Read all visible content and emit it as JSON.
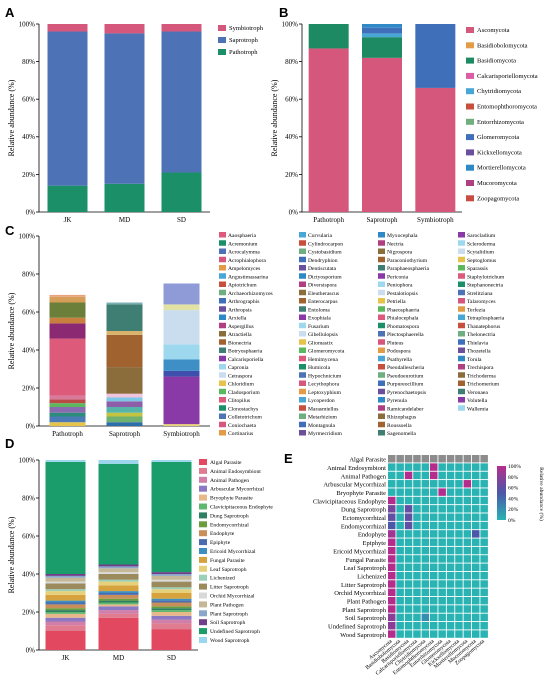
{
  "panels": {
    "a": "A",
    "b": "B",
    "c": "C",
    "d": "D",
    "e": "E"
  },
  "chart_data": [
    {
      "panel": "A",
      "type": "bar",
      "stacked": true,
      "categories": [
        "JK",
        "MD",
        "SD"
      ],
      "ylabel": "Relative abundance (%)",
      "ylim": [
        0,
        100
      ],
      "yticks": [
        "0%",
        "20%",
        "40%",
        "60%",
        "80%",
        "100%"
      ],
      "legend_position": "right",
      "series": [
        {
          "name": "Pathotroph",
          "color": "#1b8f67",
          "values": [
            14,
            15,
            21
          ]
        },
        {
          "name": "Saprotroph",
          "color": "#4d72b5",
          "values": [
            82,
            80,
            75
          ]
        },
        {
          "name": "Symbiotroph",
          "color": "#d6577c",
          "values": [
            4,
            5,
            4
          ]
        }
      ]
    },
    {
      "panel": "B",
      "type": "bar",
      "stacked": true,
      "categories": [
        "Pathotroph",
        "Saprotroph",
        "Symbiotroph"
      ],
      "ylabel": "Relative abundance (%)",
      "ylim": [
        0,
        100
      ],
      "yticks": [
        "0%",
        "20%",
        "40%",
        "60%",
        "80%",
        "100%"
      ],
      "legend_position": "right",
      "series": [
        {
          "name": "Ascomycota",
          "color": "#d5577b",
          "values": [
            87,
            82,
            66
          ]
        },
        {
          "name": "Basidiobolomycota",
          "color": "#e49b47",
          "values": [
            0,
            0,
            0
          ]
        },
        {
          "name": "Basidiomycota",
          "color": "#1e8a63",
          "values": [
            13,
            11,
            0
          ]
        },
        {
          "name": "Calcarisporiellomycota",
          "color": "#d95ea5",
          "values": [
            0,
            0,
            0
          ]
        },
        {
          "name": "Chytridiomycota",
          "color": "#49a7d8",
          "values": [
            0,
            2,
            0
          ]
        },
        {
          "name": "Entomophthoromycota",
          "color": "#c84f3d",
          "values": [
            0,
            0,
            0
          ]
        },
        {
          "name": "Entorrhizomycota",
          "color": "#6fae7f",
          "values": [
            0,
            0,
            0
          ]
        },
        {
          "name": "Glomeromycota",
          "color": "#3f6fb8",
          "values": [
            0,
            3,
            34
          ]
        },
        {
          "name": "Kickxellomycota",
          "color": "#6a4f9c",
          "values": [
            0,
            0,
            0
          ]
        },
        {
          "name": "Mortierellomycota",
          "color": "#2f89c6",
          "values": [
            0,
            2,
            0
          ]
        },
        {
          "name": "Mucoromycota",
          "color": "#b03f82",
          "values": [
            0,
            0,
            0
          ]
        },
        {
          "name": "Zoopagomycota",
          "color": "#c94b42",
          "values": [
            0,
            0,
            0
          ]
        }
      ]
    },
    {
      "panel": "C",
      "type": "bar",
      "stacked": true,
      "categories": [
        "Pathotroph",
        "Saprotroph",
        "Symbiotroph"
      ],
      "ylabel": "Relative abundance (%)",
      "ylim": [
        0,
        100
      ],
      "yticks": [
        "0%",
        "20%",
        "40%",
        "60%",
        "80%",
        "100%"
      ],
      "legend_position": "right",
      "legend": [
        "Aaosphaeria",
        "Acremonium",
        "Acrocalymma",
        "Acrophialophora",
        "Ampelomyces",
        "Angustimassarina",
        "Apiotrichum",
        "Archaeorhizomyces",
        "Arthrographis",
        "Arthropsis",
        "Arxiella",
        "Aspergillus",
        "Atractiella",
        "Bionectria",
        "Botryosphaeria",
        "Calcarisporiella",
        "Capronia",
        "Cetraspora",
        "Chloridium",
        "Cladosporium",
        "Clitopilus",
        "Clonostachys",
        "Colletotrichum",
        "Coniochaeta",
        "Cortinarius",
        "Curvularia",
        "Cylindrocarpon",
        "Cystobasidium",
        "Dendryphion",
        "Dentiscutata",
        "Dictyosporium",
        "Diversispora",
        "Eleutherascus",
        "Enterocarpus",
        "Entoloma",
        "Exophiala",
        "Fusarium",
        "Gibellulopsis",
        "Gliomastix",
        "Glomeromycota",
        "Hemimycena",
        "Humicola",
        "Hypochnicium",
        "Lecythophora",
        "Leptoxyphium",
        "Lycoperdon",
        "Marasmiellus",
        "Metarhizium",
        "Montagnula",
        "Myrmecridium",
        "Myxocephala",
        "Nectria",
        "Nigrospora",
        "Paraconiothyrium",
        "Paraphaeosphaeria",
        "Periconia",
        "Peniophora",
        "Pestalotiopsis",
        "Petriella",
        "Phaeosphaeria",
        "Phialocephala",
        "Phomatospora",
        "Plectosphaerella",
        "Pluteus",
        "Podospora",
        "Psathyrella",
        "Pseudallescheria",
        "Pseudoeurotium",
        "Purpureocillium",
        "Pyrenochaetopsis",
        "Pyrenula",
        "Ramicandelaber",
        "Rhizophagus",
        "Roussoella",
        "Sagenomella",
        "Sarocladium",
        "Scleroderma",
        "Scytalidium",
        "Septoglomus",
        "Sparassis",
        "Staphylotrichum",
        "Stephanonectria",
        "Strelitziana",
        "Talaromyces",
        "Terfezia",
        "Tetraplosphaeria",
        "Thanatephorus",
        "Thelonectria",
        "Thielavia",
        "Thozetella",
        "Torula",
        "Trechispora",
        "Trichoderma",
        "Trichomerium",
        "Veronaea",
        "Volutella",
        "Wallemia"
      ],
      "series": [
        {
          "name": "Pathotroph",
          "segments": [
            [
              2,
              "#e6c34b"
            ],
            [
              3,
              "#4a7bb7"
            ],
            [
              2,
              "#2b8c79"
            ],
            [
              3,
              "#8a6bb0"
            ],
            [
              2,
              "#5cb85c"
            ],
            [
              2,
              "#b94a48"
            ],
            [
              2,
              "#d77a9b"
            ],
            [
              30,
              "#dd5a7a"
            ],
            [
              8,
              "#8b2a72"
            ],
            [
              3,
              "#c97f3e"
            ],
            [
              8,
              "#6b7f3a"
            ],
            [
              3,
              "#d59f5a"
            ],
            [
              1,
              "#e9a37c"
            ]
          ]
        },
        {
          "name": "Saprotroph",
          "segments": [
            [
              2,
              "#2b6ea8"
            ],
            [
              3,
              "#6fb26f"
            ],
            [
              2,
              "#c3c33f"
            ],
            [
              3,
              "#56b4a9"
            ],
            [
              3,
              "#8e5fa8"
            ],
            [
              2,
              "#7dc7e6"
            ],
            [
              2,
              "#f0c4dd"
            ],
            [
              14,
              "#8a6d3b"
            ],
            [
              17,
              "#a0622e"
            ],
            [
              2,
              "#d9b36c"
            ],
            [
              14,
              "#3f7e73"
            ],
            [
              1,
              "#7ab0b0"
            ]
          ]
        },
        {
          "name": "Symbiotroph",
          "segments": [
            [
              1,
              "#e8d27a"
            ],
            [
              25,
              "#8a3aa6"
            ],
            [
              3,
              "#3f4fae"
            ],
            [
              6,
              "#3d8fc5"
            ],
            [
              8,
              "#9ed8ee"
            ],
            [
              18,
              "#c9ddee"
            ],
            [
              3,
              "#e2e2a4"
            ],
            [
              11,
              "#8e9bd6"
            ]
          ]
        }
      ]
    },
    {
      "panel": "D",
      "type": "bar",
      "stacked": true,
      "categories": [
        "JK",
        "MD",
        "SD"
      ],
      "ylabel": "Relative abundance (%)",
      "ylim": [
        0,
        100
      ],
      "yticks": [
        "0%",
        "20%",
        "40%",
        "60%",
        "80%",
        "100%"
      ],
      "legend_position": "right",
      "series": [
        {
          "name": "Algal Parasite",
          "color": "#e24960",
          "values": [
            10,
            17,
            11
          ]
        },
        {
          "name": "Animal Endosymbiont",
          "color": "#e07c8f",
          "values": [
            3,
            2,
            3
          ]
        },
        {
          "name": "Animal Pathogen",
          "color": "#d17fa8",
          "values": [
            2,
            2,
            2
          ]
        },
        {
          "name": "Arbuscular Mycorrhizal",
          "color": "#8b79c4",
          "values": [
            2,
            2,
            2
          ]
        },
        {
          "name": "Bryophyte Parasite",
          "color": "#e8b88a",
          "values": [
            2,
            1,
            2
          ]
        },
        {
          "name": "Clavicipitaceous Endophyte",
          "color": "#60b86f",
          "values": [
            1,
            1,
            1
          ]
        },
        {
          "name": "Dung Saprotroph",
          "color": "#2f7f63",
          "values": [
            1,
            1,
            1
          ]
        },
        {
          "name": "Endomycorrhizal",
          "color": "#6a9d3e",
          "values": [
            1,
            1,
            1
          ]
        },
        {
          "name": "Endophyte",
          "color": "#c88f5b",
          "values": [
            2,
            2,
            2
          ]
        },
        {
          "name": "Epiphyte",
          "color": "#4b6cb0",
          "values": [
            1,
            1,
            1
          ]
        },
        {
          "name": "Ericoid Mycorrhizal",
          "color": "#3c8fbf",
          "values": [
            1,
            1,
            1
          ]
        },
        {
          "name": "Fungal Parasite",
          "color": "#d6a23e",
          "values": [
            3,
            3,
            3
          ]
        },
        {
          "name": "Leaf Saprotroph",
          "color": "#e6d07a",
          "values": [
            2,
            2,
            2
          ]
        },
        {
          "name": "Lichenized",
          "color": "#9ad0b7",
          "values": [
            1,
            1,
            1
          ]
        },
        {
          "name": "Litter Saprotroph",
          "color": "#9b8a5c",
          "values": [
            3,
            3,
            3
          ]
        },
        {
          "name": "Orchid Mycorrhizal",
          "color": "#d9d9d9",
          "values": [
            1,
            1,
            1
          ]
        },
        {
          "name": "Plant Pathogen",
          "color": "#c4b896",
          "values": [
            2,
            2,
            2
          ]
        },
        {
          "name": "Plant Saprotroph",
          "color": "#8aa7c9",
          "values": [
            1,
            1,
            1
          ]
        },
        {
          "name": "Soil Saprotroph",
          "color": "#6f3f8a",
          "values": [
            1,
            1,
            1
          ]
        },
        {
          "name": "Undefined Saprotroph",
          "color": "#1a9c6b",
          "values": [
            59,
            53,
            58
          ]
        },
        {
          "name": "Wood Saprotroph",
          "color": "#9bd6ef",
          "values": [
            1,
            2,
            1
          ]
        }
      ]
    },
    {
      "panel": "E",
      "type": "heatmap",
      "rows": [
        "Algal Parasite",
        "Animal Endosymbiont",
        "Animal Pathogen",
        "Arbuscular Mycorrhizal",
        "Bryophyte Parasite",
        "Clavicipitaceous Endophyte",
        "Dung Saprotroph",
        "Ectomycorrhizal",
        "Endomycorrhizal",
        "Endophyte",
        "Epiphyte",
        "Ericoid Mycorrhizal",
        "Fungal Parasite",
        "Leaf Saprotroph",
        "Lichenized",
        "Litter Saprotroph",
        "Orchid Mycorrhizal",
        "Plant Pathogen",
        "Plant Saprotroph",
        "Soil Saprotroph",
        "Undefined Saprotroph",
        "Wood Saprotroph"
      ],
      "columns": [
        "Ascomycota",
        "Basidiobolomycota",
        "Basidiomycota",
        "Calcarisporiellomycota",
        "Chytridiomycota",
        "Entomophthoromycota",
        "Entorrhizomycota",
        "Glomeromycota",
        "Kickxellomycota",
        "Mortierellomycota",
        "Mucoromycota",
        "Zoopagomycota"
      ],
      "colorbar_label": "Relative abundance (%)",
      "colorbar_ticks": [
        "100%",
        "80%",
        "60%",
        "40%",
        "20%",
        "0%"
      ],
      "colorscale": [
        "#2ab3b3",
        "#4b58a8",
        "#b52d8c"
      ],
      "values": [
        [
          0,
          0,
          0,
          0,
          0,
          0,
          0,
          0,
          0,
          0,
          0,
          0
        ],
        [
          0,
          0,
          0,
          0,
          0,
          100,
          0,
          0,
          0,
          0,
          0,
          0
        ],
        [
          0,
          0,
          100,
          0,
          0,
          100,
          0,
          0,
          0,
          0,
          0,
          0
        ],
        [
          0,
          0,
          0,
          0,
          0,
          0,
          0,
          0,
          0,
          100,
          0,
          0
        ],
        [
          0,
          0,
          0,
          0,
          0,
          0,
          100,
          0,
          0,
          0,
          0,
          0
        ],
        [
          100,
          0,
          0,
          0,
          0,
          0,
          0,
          0,
          0,
          0,
          0,
          0
        ],
        [
          70,
          0,
          60,
          0,
          0,
          0,
          0,
          0,
          0,
          0,
          0,
          0
        ],
        [
          60,
          0,
          60,
          0,
          0,
          0,
          0,
          0,
          0,
          0,
          0,
          0
        ],
        [
          50,
          0,
          60,
          0,
          0,
          0,
          0,
          0,
          0,
          0,
          0,
          0
        ],
        [
          90,
          0,
          0,
          0,
          0,
          0,
          0,
          0,
          0,
          0,
          50,
          0
        ],
        [
          100,
          0,
          0,
          0,
          0,
          0,
          0,
          0,
          0,
          0,
          0,
          0
        ],
        [
          100,
          0,
          0,
          0,
          0,
          0,
          0,
          0,
          0,
          0,
          0,
          0
        ],
        [
          100,
          0,
          0,
          0,
          0,
          0,
          0,
          0,
          0,
          0,
          0,
          0
        ],
        [
          100,
          0,
          0,
          0,
          0,
          0,
          0,
          0,
          0,
          0,
          0,
          0
        ],
        [
          100,
          0,
          0,
          0,
          0,
          0,
          0,
          0,
          0,
          0,
          0,
          0
        ],
        [
          100,
          0,
          0,
          0,
          0,
          0,
          0,
          0,
          0,
          0,
          0,
          0
        ],
        [
          100,
          0,
          0,
          0,
          0,
          0,
          0,
          0,
          0,
          0,
          0,
          0
        ],
        [
          100,
          0,
          0,
          0,
          0,
          0,
          0,
          0,
          0,
          0,
          0,
          0
        ],
        [
          100,
          0,
          0,
          0,
          0,
          0,
          0,
          0,
          0,
          0,
          0,
          0
        ],
        [
          80,
          0,
          0,
          0,
          20,
          0,
          0,
          0,
          0,
          0,
          0,
          0
        ],
        [
          80,
          0,
          0,
          0,
          0,
          0,
          0,
          0,
          0,
          0,
          0,
          0
        ],
        [
          100,
          0,
          0,
          0,
          0,
          0,
          0,
          0,
          0,
          0,
          0,
          0
        ]
      ]
    }
  ]
}
